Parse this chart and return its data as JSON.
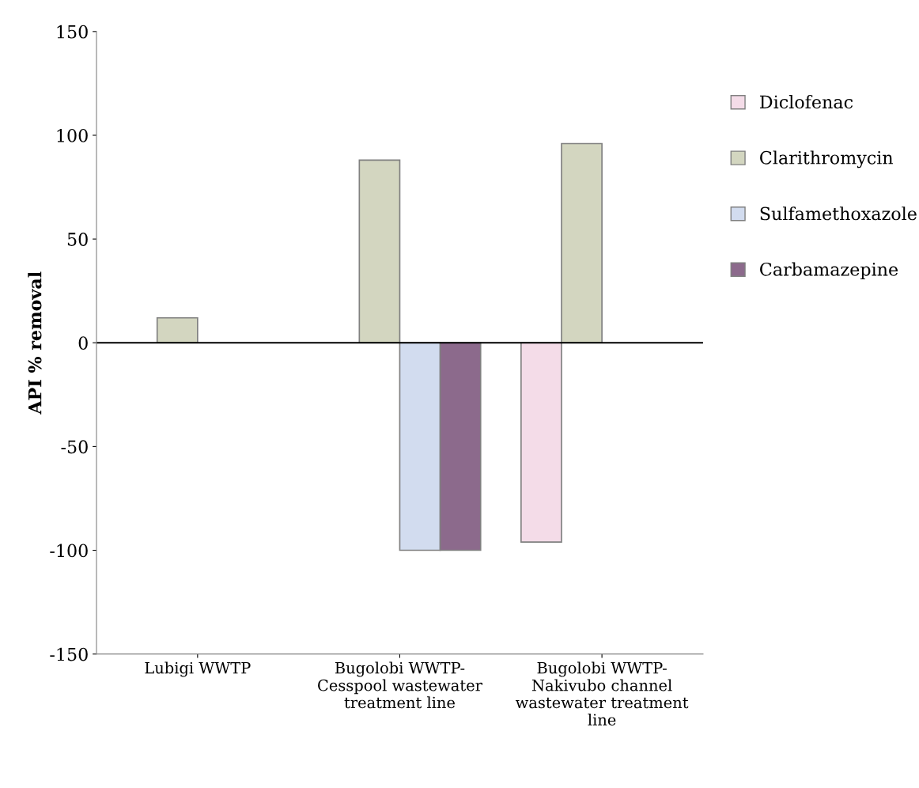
{
  "chart_data": {
    "type": "bar",
    "ylabel": "API % removal",
    "categories": [
      "Lubigi WWTP",
      "Bugolobi WWTP-\nCesspool wastewater\ntreatment line",
      "Bugolobi WWTP-\nNakivubo channel\nwastewater treatment\nline"
    ],
    "series": [
      {
        "name": "Diclofenac",
        "color": "#f4dce8",
        "values": [
          null,
          null,
          -96
        ]
      },
      {
        "name": "Clarithromycin",
        "color": "#d3d6c0",
        "values": [
          12,
          88,
          96
        ]
      },
      {
        "name": "Sulfamethoxazole",
        "color": "#d2dcef",
        "values": [
          null,
          -100,
          null
        ]
      },
      {
        "name": "Carbamazepine",
        "color": "#8c6a8c",
        "values": [
          null,
          -100,
          null
        ]
      }
    ],
    "ylim": [
      -150,
      150
    ],
    "yticks": [
      -150,
      -100,
      -50,
      0,
      50,
      100,
      150
    ],
    "ref_lines": [
      {
        "axis": "y",
        "value": 0,
        "color": "#000000"
      }
    ],
    "grid": false,
    "legend": "right"
  }
}
